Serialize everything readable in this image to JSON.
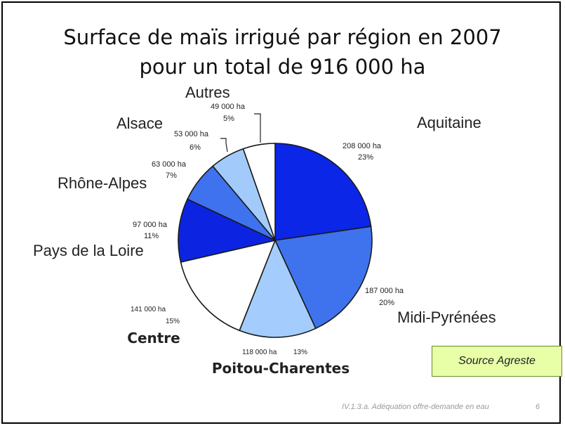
{
  "title_lines": [
    "Surface de maïs irrigué par région en 2007",
    "pour un total de 916 000 ha"
  ],
  "chart_data": {
    "type": "pie",
    "title": "Surface de maïs irrigué par région en 2007 pour un total de 916 000 ha",
    "unit": "ha",
    "slices": [
      {
        "label": "Aquitaine",
        "value": 208000,
        "value_text": "208 000 ha",
        "percent": 23,
        "percent_text": "23%",
        "color": "#0b26e6"
      },
      {
        "label": "Midi-Pyrénées",
        "value": 187000,
        "value_text": "187 000 ha",
        "percent": 20,
        "percent_text": "20%",
        "color": "#3f73ee"
      },
      {
        "label": "Poitou-Charentes",
        "value": 118000,
        "value_text": "118 000 ha",
        "percent": 13,
        "percent_text": "13%",
        "color": "#a4cdfd"
      },
      {
        "label": "Centre",
        "value": 141000,
        "value_text": "141 000 ha",
        "percent": 15,
        "percent_text": "15%",
        "color": "#ffffff"
      },
      {
        "label": "Pays de la Loire",
        "value": 97000,
        "value_text": "97 000 ha",
        "percent": 11,
        "percent_text": "11%",
        "color": "#0c24e2"
      },
      {
        "label": "Rhône-Alpes",
        "value": 63000,
        "value_text": "63 000 ha",
        "percent": 7,
        "percent_text": "7%",
        "color": "#3e72ee"
      },
      {
        "label": "Alsace",
        "value": 53000,
        "value_text": "53 000 ha",
        "percent": 6,
        "percent_text": "6%",
        "color": "#a2cbfb"
      },
      {
        "label": "Autres",
        "value": 49000,
        "value_text": "49 000 ha",
        "percent": 5,
        "percent_text": "5%",
        "color": "#ffffff"
      }
    ]
  },
  "source_label": "Source Agreste",
  "footer_text": "IV.1.3.a. Adéquation offre-demande en eau",
  "page_number": "6"
}
